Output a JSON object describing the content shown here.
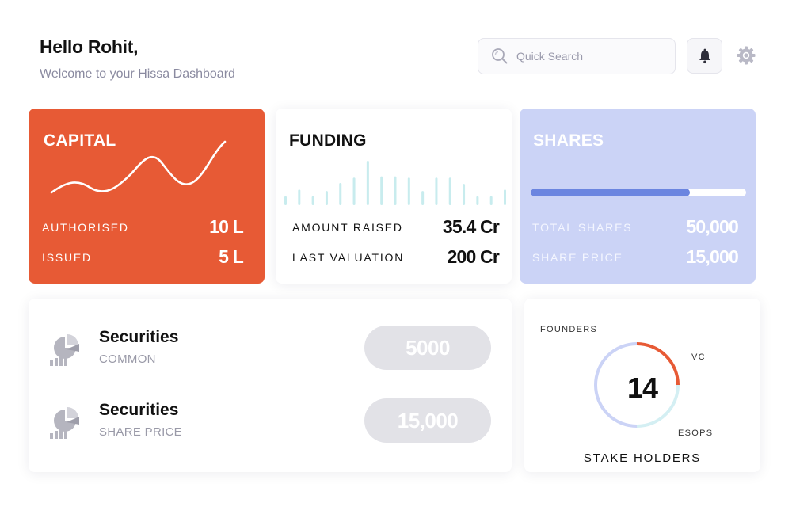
{
  "greeting": {
    "title": "Hello Rohit,",
    "subtitle": "Welcome to your Hissa Dashboard"
  },
  "header": {
    "search_placeholder": "Quick Search",
    "search_icon": "search-icon",
    "notification_icon": "bell-icon",
    "settings_icon": "gear-icon"
  },
  "capital": {
    "title": "CAPITAL",
    "authorised_label": "AUTHORISED",
    "authorised_value": "10 L",
    "issued_label": "ISSUED",
    "issued_value": "5 L",
    "color": "#e75a35"
  },
  "funding": {
    "title": "FUNDING",
    "amount_raised_label": "AMOUNT RAISED",
    "amount_raised_value": "35.4 Cr",
    "last_valuation_label": "LAST VALUATION",
    "last_valuation_value": "200 Cr",
    "bar_color": "#c8ecee",
    "bars": [
      0.2,
      0.35,
      0.2,
      0.32,
      0.5,
      0.62,
      1.0,
      0.65,
      0.65,
      0.62,
      0.32,
      0.62,
      0.62,
      0.48,
      0.2,
      0.2,
      0.35
    ]
  },
  "shares": {
    "title": "SHARES",
    "total_shares_label": "TOTAL SHARES",
    "total_shares_value": "50,000",
    "share_price_label": "SHARE PRICE",
    "share_price_value": "15,000",
    "progress": 0.74,
    "color": "#cbd3f6"
  },
  "securities": [
    {
      "title": "Securities",
      "subtitle": "COMMON",
      "value": "5000",
      "icon": "pie-chart-icon"
    },
    {
      "title": "Securities",
      "subtitle": "SHARE PRICE",
      "value": "15,000",
      "icon": "pie-chart-icon"
    }
  ],
  "stakeholders": {
    "count": "14",
    "title": "STAKE HOLDERS",
    "segments": [
      {
        "name": "FOUNDERS",
        "fraction": 0.25,
        "color": "#e75a35"
      },
      {
        "name": "VC",
        "fraction": 0.25,
        "color": "#d4eff3"
      },
      {
        "name": "ESOPS",
        "fraction": 0.5,
        "color": "#cbd3f6"
      }
    ]
  }
}
